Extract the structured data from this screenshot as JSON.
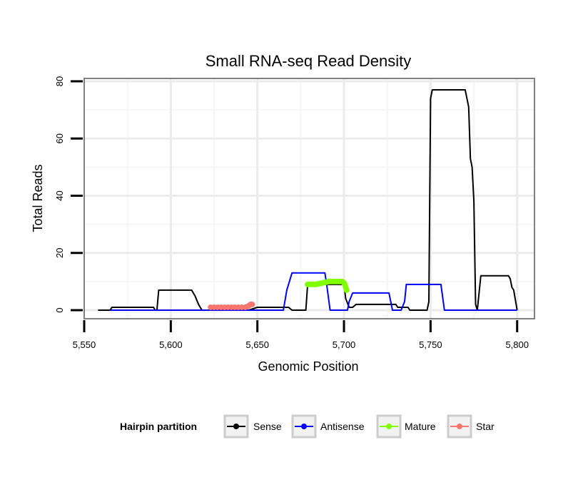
{
  "chart_data": {
    "type": "line",
    "title": "Small RNA-seq Read Density",
    "xlabel": "Genomic Position",
    "ylabel": "Total Reads",
    "xlim": [
      5550,
      5810
    ],
    "ylim": [
      -3,
      81
    ],
    "x_ticks": [
      5550,
      5600,
      5650,
      5700,
      5750,
      5800
    ],
    "x_tick_labels": [
      "5,550",
      "5,600",
      "5,650",
      "5,700",
      "5,750",
      "5,800"
    ],
    "y_ticks": [
      0,
      20,
      40,
      60,
      80
    ],
    "y_tick_labels": [
      "0",
      "20",
      "40",
      "60",
      "80"
    ],
    "grid": true,
    "legend": {
      "title": "Hairpin partition",
      "position": "bottom",
      "entries": [
        "Sense",
        "Antisense",
        "Mature",
        "Star"
      ]
    },
    "series": [
      {
        "name": "Sense",
        "color": "#000000",
        "marker": false,
        "points": [
          [
            5558,
            0
          ],
          [
            5565,
            0
          ],
          [
            5566,
            1
          ],
          [
            5590,
            1
          ],
          [
            5591,
            0
          ],
          [
            5592,
            0
          ],
          [
            5593,
            7
          ],
          [
            5612,
            7
          ],
          [
            5614,
            5
          ],
          [
            5616,
            2
          ],
          [
            5618,
            0
          ],
          [
            5645,
            0
          ],
          [
            5650,
            1
          ],
          [
            5668,
            1
          ],
          [
            5670,
            0
          ],
          [
            5678,
            0
          ],
          [
            5679,
            9
          ],
          [
            5700,
            9
          ],
          [
            5701,
            4
          ],
          [
            5703,
            1
          ],
          [
            5705,
            1
          ],
          [
            5707,
            2
          ],
          [
            5730,
            2
          ],
          [
            5731,
            1
          ],
          [
            5737,
            1
          ],
          [
            5738,
            0
          ],
          [
            5748,
            0
          ],
          [
            5749,
            3
          ],
          [
            5750,
            74
          ],
          [
            5751,
            77
          ],
          [
            5770,
            77
          ],
          [
            5772,
            71
          ],
          [
            5773,
            53
          ],
          [
            5774,
            50
          ],
          [
            5775,
            38
          ],
          [
            5776,
            2
          ],
          [
            5777,
            0
          ],
          [
            5779,
            12
          ],
          [
            5795,
            12
          ],
          [
            5796,
            11
          ],
          [
            5797,
            8
          ],
          [
            5798,
            7
          ],
          [
            5800,
            0
          ]
        ]
      },
      {
        "name": "Antisense",
        "color": "#0000ff",
        "marker": false,
        "points": [
          [
            5565,
            0
          ],
          [
            5665,
            0
          ],
          [
            5667,
            7
          ],
          [
            5670,
            13
          ],
          [
            5689,
            13
          ],
          [
            5690,
            9
          ],
          [
            5692,
            0
          ],
          [
            5702,
            0
          ],
          [
            5703,
            3
          ],
          [
            5705,
            6
          ],
          [
            5726,
            6
          ],
          [
            5728,
            0
          ],
          [
            5733,
            0
          ],
          [
            5735,
            3
          ],
          [
            5736,
            9
          ],
          [
            5756,
            9
          ],
          [
            5758,
            0
          ],
          [
            5800,
            0
          ]
        ]
      },
      {
        "name": "Mature",
        "color": "#7fff00",
        "marker": true,
        "points": [
          [
            5679,
            9
          ],
          [
            5680,
            9
          ],
          [
            5681,
            9
          ],
          [
            5682,
            9
          ],
          [
            5683,
            9
          ],
          [
            5684,
            9
          ],
          [
            5685,
            9.2
          ],
          [
            5686,
            9.3
          ],
          [
            5687,
            9.4
          ],
          [
            5688,
            9.6
          ],
          [
            5689,
            9.7
          ],
          [
            5690,
            9.8
          ],
          [
            5691,
            10
          ],
          [
            5692,
            10
          ],
          [
            5693,
            10
          ],
          [
            5694,
            10
          ],
          [
            5695,
            10
          ],
          [
            5696,
            10
          ],
          [
            5697,
            10
          ],
          [
            5698,
            10
          ],
          [
            5699,
            10
          ],
          [
            5700,
            9.5
          ],
          [
            5700.5,
            9
          ],
          [
            5701,
            8
          ],
          [
            5701.5,
            7
          ]
        ]
      },
      {
        "name": "Star",
        "color": "#f8766d",
        "marker": true,
        "points": [
          [
            5623,
            1
          ],
          [
            5625,
            1
          ],
          [
            5627,
            1
          ],
          [
            5629,
            1
          ],
          [
            5631,
            1
          ],
          [
            5633,
            1
          ],
          [
            5635,
            1
          ],
          [
            5637,
            1
          ],
          [
            5639,
            1
          ],
          [
            5641,
            1
          ],
          [
            5643,
            1
          ],
          [
            5644,
            1.2
          ],
          [
            5645,
            1.5
          ],
          [
            5646,
            2
          ],
          [
            5647,
            2
          ]
        ]
      }
    ]
  }
}
